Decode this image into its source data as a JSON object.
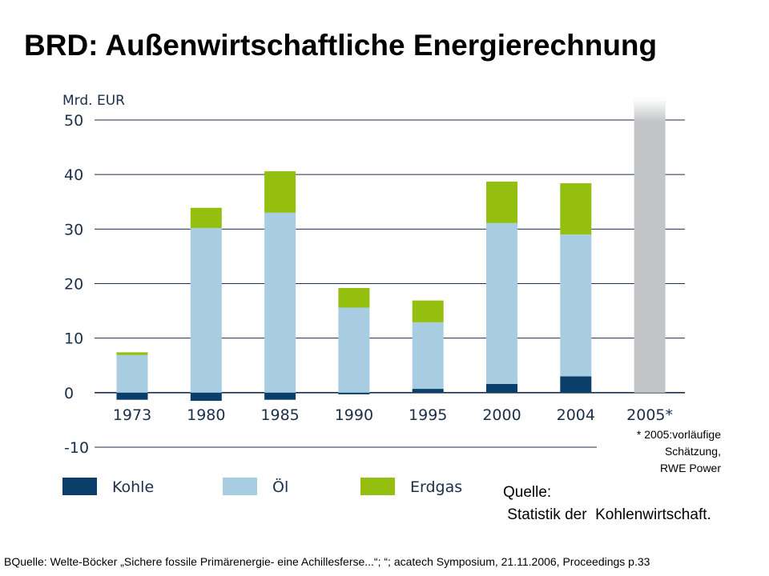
{
  "title": "BRD: Außenwirtschaftliche Energierechnung",
  "chart_data": {
    "type": "bar",
    "stacked": true,
    "ylabel": "Mrd. EUR",
    "ylim": [
      -10,
      50
    ],
    "yticks": [
      "50",
      "40",
      "30",
      "20",
      "10",
      "0",
      "-10"
    ],
    "categories": [
      "1973",
      "1980",
      "1985",
      "1990",
      "1995",
      "2000",
      "2004",
      "2005*"
    ],
    "series": [
      {
        "name": "Kohle",
        "color": "#0b3f6b",
        "values": [
          -1.3,
          -1.5,
          -1.3,
          -0.3,
          0.7,
          1.6,
          3.0,
          null
        ]
      },
      {
        "name": "Öl",
        "color": "#a8cde3",
        "values": [
          6.9,
          30.2,
          33.0,
          15.6,
          12.2,
          29.5,
          26.0,
          null
        ]
      },
      {
        "name": "Erdgas",
        "color": "#94bf0f",
        "values": [
          0.5,
          3.7,
          7.6,
          3.6,
          4.0,
          7.6,
          9.4,
          null
        ]
      }
    ],
    "estimate": {
      "category": "2005*",
      "value": 54,
      "color": "#c2c4c6"
    },
    "grid": true,
    "legend": "bottom"
  },
  "notes": {
    "estimate_note": [
      "* 2005:vorläufige",
      "Schätzung,",
      "RWE Power"
    ]
  },
  "source": {
    "line1": "Quelle:",
    "line2": " Statistik der  Kohlenwirtschaft."
  },
  "footer": "BQuelle: Welte-Böcker „Sichere fossile Primärenergie- eine Achillesferse...“; “; acatech Symposium, 21.11.2006, Proceedings p.33"
}
